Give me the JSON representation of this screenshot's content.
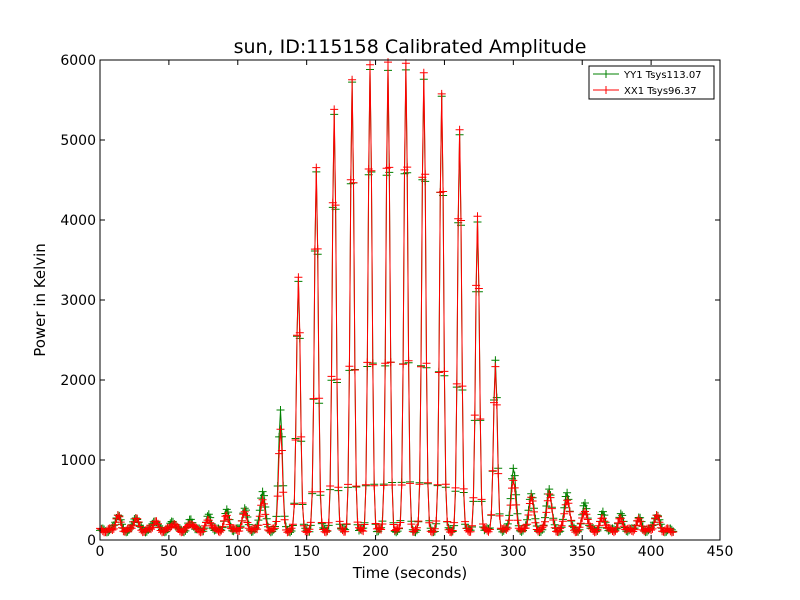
{
  "chart_data": {
    "type": "line",
    "title": "sun, ID:115158 Calibrated Amplitude",
    "xlabel": "Time (seconds)",
    "ylabel": "Power in Kelvin",
    "xlim": [
      0,
      450
    ],
    "ylim": [
      0,
      6000
    ],
    "xticks": [
      "0",
      "50",
      "100",
      "150",
      "200",
      "250",
      "300",
      "350",
      "400",
      "450"
    ],
    "yticks": [
      "0",
      "1000",
      "2000",
      "3000",
      "4000",
      "5000",
      "6000"
    ],
    "grid": false,
    "legend_position": "top-right",
    "marker": "+",
    "baseline": 120,
    "sample_interval_s": 1,
    "x_start": 0,
    "x_end": 416,
    "series": [
      {
        "name": "YY1 Tsys113.07",
        "color": "#008000",
        "peaks": [
          {
            "t": 13,
            "v": 330
          },
          {
            "t": 26,
            "v": 300
          },
          {
            "t": 40,
            "v": 260
          },
          {
            "t": 53,
            "v": 240
          },
          {
            "t": 66,
            "v": 250
          },
          {
            "t": 79,
            "v": 300
          },
          {
            "t": 92,
            "v": 360
          },
          {
            "t": 105,
            "v": 390
          },
          {
            "t": 118,
            "v": 620
          },
          {
            "t": 131,
            "v": 1650
          },
          {
            "t": 144,
            "v": 3250
          },
          {
            "t": 157,
            "v": 4600
          },
          {
            "t": 170,
            "v": 5300
          },
          {
            "t": 183,
            "v": 5700
          },
          {
            "t": 196,
            "v": 5870
          },
          {
            "t": 209,
            "v": 5880
          },
          {
            "t": 222,
            "v": 5900
          },
          {
            "t": 235,
            "v": 5780
          },
          {
            "t": 248,
            "v": 5550
          },
          {
            "t": 261,
            "v": 5050
          },
          {
            "t": 274,
            "v": 3950
          },
          {
            "t": 287,
            "v": 2230
          },
          {
            "t": 300,
            "v": 900
          },
          {
            "t": 313,
            "v": 600
          },
          {
            "t": 326,
            "v": 660
          },
          {
            "t": 339,
            "v": 600
          },
          {
            "t": 352,
            "v": 450
          },
          {
            "t": 365,
            "v": 330
          },
          {
            "t": 378,
            "v": 310
          },
          {
            "t": 391,
            "v": 280
          },
          {
            "t": 404,
            "v": 330
          }
        ]
      },
      {
        "name": "XX1 Tsys96.37",
        "color": "#ff0000",
        "peaks": [
          {
            "t": 13,
            "v": 290
          },
          {
            "t": 26,
            "v": 270
          },
          {
            "t": 40,
            "v": 230
          },
          {
            "t": 53,
            "v": 210
          },
          {
            "t": 66,
            "v": 220
          },
          {
            "t": 79,
            "v": 260
          },
          {
            "t": 92,
            "v": 300
          },
          {
            "t": 105,
            "v": 330
          },
          {
            "t": 118,
            "v": 480
          },
          {
            "t": 131,
            "v": 1380
          },
          {
            "t": 144,
            "v": 3300
          },
          {
            "t": 157,
            "v": 4680
          },
          {
            "t": 170,
            "v": 5400
          },
          {
            "t": 183,
            "v": 5750
          },
          {
            "t": 196,
            "v": 5920
          },
          {
            "t": 209,
            "v": 5950
          },
          {
            "t": 222,
            "v": 5950
          },
          {
            "t": 235,
            "v": 5850
          },
          {
            "t": 248,
            "v": 5600
          },
          {
            "t": 261,
            "v": 5150
          },
          {
            "t": 274,
            "v": 4050
          },
          {
            "t": 287,
            "v": 2150
          },
          {
            "t": 300,
            "v": 720
          },
          {
            "t": 313,
            "v": 520
          },
          {
            "t": 326,
            "v": 580
          },
          {
            "t": 339,
            "v": 520
          },
          {
            "t": 352,
            "v": 380
          },
          {
            "t": 365,
            "v": 280
          },
          {
            "t": 378,
            "v": 260
          },
          {
            "t": 391,
            "v": 240
          },
          {
            "t": 404,
            "v": 290
          }
        ]
      }
    ]
  }
}
